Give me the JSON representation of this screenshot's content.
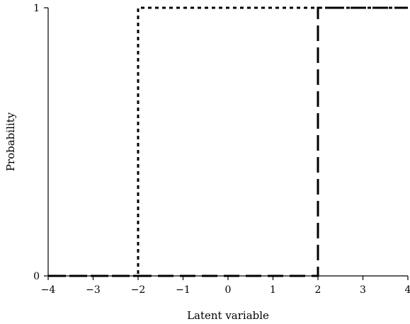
{
  "chart_data": {
    "type": "line",
    "title": "",
    "xlabel": "Latent variable",
    "ylabel": "Probability",
    "xlim": [
      -4,
      4
    ],
    "ylim": [
      0,
      1
    ],
    "x_ticks": [
      -4,
      -3,
      -2,
      -1,
      0,
      1,
      2,
      3,
      4
    ],
    "x_tick_labels": [
      "−4",
      "−3",
      "−2",
      "−1",
      "0",
      "1",
      "2",
      "3",
      "4"
    ],
    "y_ticks": [
      0,
      1
    ],
    "y_tick_labels": [
      "0",
      "1"
    ],
    "grid": false,
    "legend": "none",
    "series": [
      {
        "style": "dotted",
        "color": "#000000",
        "x": [
          -4,
          -2,
          -2,
          4
        ],
        "y": [
          0,
          0,
          1,
          1
        ]
      },
      {
        "style": "dashed",
        "color": "#000000",
        "x": [
          -4,
          2,
          2,
          4
        ],
        "y": [
          0,
          0,
          1,
          1
        ]
      }
    ]
  }
}
